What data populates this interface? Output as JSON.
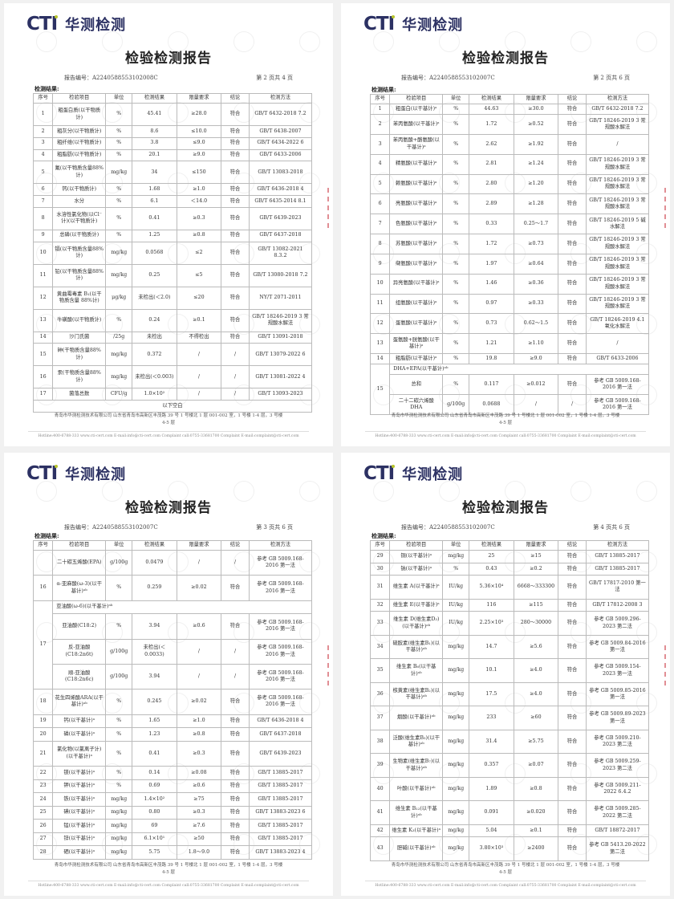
{
  "logo": {
    "brand": "CTI",
    "name_cn": "华测检测",
    "colors": {
      "navy": "#2c3163",
      "accent": "#b6c42a"
    }
  },
  "common": {
    "title": "检验检测报告",
    "results_label": "检测结果:",
    "headers": [
      "序号",
      "检验项目",
      "单位",
      "检测结果",
      "限量要求",
      "结论",
      "检测方法"
    ],
    "footer_company": "青岛市华测检测技术有限公司  山东省青岛市高新区丰茂路 39 号 1 号楼北 1 层 001-002 室，1 号楼 1-4 层，3 号楼 4-5 层",
    "footer_contact": "Hotline:400-6788-333     www.cti-cert.com     E-mail:info@cti-cert.com     Complaint call:0755-33681700     Complaint E-mail:complaint@cti-cert.com"
  },
  "pages": [
    {
      "report_no": "报告编号：A2240588553102008C",
      "page_no": "第 2 页共 4 页",
      "rows": [
        {
          "c": [
            "1",
            "粗蛋白质(以干物质计)",
            "%",
            "45.41",
            "≥28.0",
            "符合",
            "GB/T 6432-2018 7.2"
          ]
        },
        {
          "c": [
            "2",
            "粗灰分(以干物质计)",
            "%",
            "8.6",
            "≤10.0",
            "符合",
            "GB/T 6438-2007"
          ]
        },
        {
          "c": [
            "3",
            "粗纤维(以干物质计)",
            "%",
            "3.8",
            "≤9.0",
            "符合",
            "GB/T 6434-2022 6"
          ]
        },
        {
          "c": [
            "4",
            "粗脂肪(以干物质计)",
            "%",
            "20.1",
            "≥9.0",
            "符合",
            "GB/T 6433-2006"
          ]
        },
        {
          "c": [
            "5",
            "氟(以干物质含量88%计)",
            "mg/kg",
            "34",
            "≤150",
            "符合",
            "GB/T 13083-2018"
          ]
        },
        {
          "c": [
            "6",
            "钙(以干物质计)",
            "%",
            "1.68",
            "≥1.0",
            "符合",
            "GB/T 6436-2018 4"
          ]
        },
        {
          "c": [
            "7",
            "水分",
            "%",
            "6.1",
            "＜14.0",
            "符合",
            "GB/T 6435-2014 8.1"
          ]
        },
        {
          "c": [
            "8",
            "水溶性氯化物(以Cl⁻计)(以干物质计)",
            "%",
            "0.41",
            "≥0.3",
            "符合",
            "GB/T 6439-2023"
          ]
        },
        {
          "c": [
            "9",
            "总磷(以干物质计)",
            "%",
            "1.25",
            "≥0.8",
            "符合",
            "GB/T 6437-2018"
          ]
        },
        {
          "c": [
            "10",
            "镉(以干物质含量88%计)",
            "mg/kg",
            "0.0568",
            "≤2",
            "符合",
            "GB/T 13082-2021 8.3.2"
          ]
        },
        {
          "c": [
            "11",
            "铅(以干物质含量88%计)",
            "mg/kg",
            "0.25",
            "≤5",
            "符合",
            "GB/T 13080-2018 7.2"
          ]
        },
        {
          "c": [
            "12",
            "黄曲霉毒素 B₁(以干物质含量 88%计)",
            "μg/kg",
            "未检出(＜2.0)",
            "≤20",
            "符合",
            "NY/T 2071-2011"
          ]
        },
        {
          "c": [
            "13",
            "牛磺酸(以干物质计)",
            "%",
            "0.24",
            "≥0.1",
            "符合",
            "GB/T 18246-2019 3 常规酸水解法"
          ]
        },
        {
          "c": [
            "14",
            "沙门氏菌",
            "/25g",
            "未检出",
            "不得检出",
            "符合",
            "GB/T 13091-2018"
          ]
        },
        {
          "c": [
            "15",
            "砷(干物质含量88%计)",
            "mg/kg",
            "0.372",
            "/",
            "/",
            "GB/T 13079-2022 6"
          ]
        },
        {
          "c": [
            "16",
            "汞(干物质含量88%计)",
            "mg/kg",
            "未检出(＜0.003)",
            "/",
            "/",
            "GB/T 13081-2022 4"
          ]
        },
        {
          "c": [
            "17",
            "菌落总数",
            "CFU/g",
            "1.0×10²",
            "/",
            "/",
            "GB/T 13093-2023"
          ]
        },
        {
          "note": "以下空白"
        }
      ]
    },
    {
      "report_no": "报告编号：A2240588553102007C",
      "page_no": "第 2 页共 6 页",
      "rows": [
        {
          "c": [
            "1",
            "粗蛋白(以干基计)ᵃ",
            "%",
            "44.63",
            "≥30.0",
            "符合",
            "GB/T 6432-2018 7.2"
          ]
        },
        {
          "c": [
            "2",
            "苯丙氨酸(以干基计)ᵃ",
            "%",
            "1.72",
            "≥0.52",
            "符合",
            "GB/T 18246-2019 3 常规酸水解法"
          ]
        },
        {
          "c": [
            "3",
            "苯丙氨酸+酪氨酸(以干基计)ᵃ",
            "%",
            "2.62",
            "≥1.92",
            "符合",
            "/"
          ]
        },
        {
          "c": [
            "4",
            "精氨酸(以干基计)ᵃ",
            "%",
            "2.81",
            "≥1.24",
            "符合",
            "GB/T 18246-2019 3 常规酸水解法"
          ]
        },
        {
          "c": [
            "5",
            "赖氨酸(以干基计)ᵃ",
            "%",
            "2.80",
            "≥1.20",
            "符合",
            "GB/T 18246-2019 3 常规酸水解法"
          ]
        },
        {
          "c": [
            "6",
            "亮氨酸(以干基计)ᵃ",
            "%",
            "2.89",
            "≥1.28",
            "符合",
            "GB/T 18246-2019 3 常规酸水解法"
          ]
        },
        {
          "c": [
            "7",
            "色氨酸(以干基计)ᵃ",
            "%",
            "0.33",
            "0.25～1.7",
            "符合",
            "GB/T 18246-2019 5 碱水解法"
          ]
        },
        {
          "c": [
            "8",
            "苏氨酸(以干基计)ᵃ",
            "%",
            "1.72",
            "≥0.73",
            "符合",
            "GB/T 18246-2019 3 常规酸水解法"
          ]
        },
        {
          "c": [
            "9",
            "缬氨酸(以干基计)ᵃ",
            "%",
            "1.97",
            "≥0.64",
            "符合",
            "GB/T 18246-2019 3 常规酸水解法"
          ]
        },
        {
          "c": [
            "10",
            "异亮氨酸(以干基计)ᵃ",
            "%",
            "1.46",
            "≥0.36",
            "符合",
            "GB/T 18246-2019 3 常规酸水解法"
          ]
        },
        {
          "c": [
            "11",
            "组氨酸(以干基计)ᵃ",
            "%",
            "0.97",
            "≥0.33",
            "符合",
            "GB/T 18246-2019 3 常规酸水解法"
          ]
        },
        {
          "c": [
            "12",
            "蛋氨酸(以干基计)ᵃ",
            "%",
            "0.73",
            "0.62～1.5",
            "符合",
            "GB/T 18246-2019 4.1 氧化水解法"
          ]
        },
        {
          "c": [
            "13",
            "蛋氨酸+胱氨酸(以干基计)ᵃ",
            "%",
            "1.21",
            "≥1.10",
            "符合",
            "/"
          ]
        },
        {
          "c": [
            "14",
            "粗脂肪(以干基计)ᵃ",
            "%",
            "19.8",
            "≥9.0",
            "符合",
            "GB/T 6433-2006"
          ]
        },
        {
          "seq": "15",
          "group": "DHA+EPA(以干基计)ᵃᵇ",
          "sub": [
            [
              "总和",
              "%",
              "0.117",
              "≥0.012",
              "符合",
              "参考 GB 5009.168-2016 第一法"
            ],
            [
              "二十二碳六烯酸 DHA",
              "g/100g",
              "0.0688",
              "/",
              "/",
              "参考 GB 5009.168-2016 第一法"
            ]
          ]
        }
      ]
    },
    {
      "report_no": "报告编号：A2240588553102007C",
      "page_no": "第 3 页共 6 页",
      "rows": [
        {
          "c": [
            "",
            "二十碳五烯酸(EPA)",
            "g/100g",
            "0.0479",
            "/",
            "/",
            "参考 GB 5009.168-2016 第一法"
          ]
        },
        {
          "c": [
            "16",
            "α-亚麻酸(ω-3)(以干基计)ᵃᵇ",
            "%",
            "0.259",
            "≥0.02",
            "符合",
            "参考 GB 5009.168-2016 第一法"
          ]
        },
        {
          "seq": "17",
          "group": "亚油酸(ω-6)(以干基计)ᵃᵇ",
          "sub": [
            [
              "亚油酸(C18:2)",
              "%",
              "3.94",
              "≥0.6",
              "符合",
              "参考 GB 5009.168-2016 第一法"
            ],
            [
              "反-亚油酸(C18:2n6t)",
              "g/100g",
              "未检出(＜0.0033)",
              "/",
              "/",
              "参考 GB 5009.168-2016 第一法"
            ],
            [
              "顺-亚油酸(C18:2n6c)",
              "g/100g",
              "3.94",
              "/",
              "/",
              "参考 GB 5009.168-2016 第一法"
            ]
          ]
        },
        {
          "c": [
            "18",
            "花生四烯酸ARA(以干基计)ᵃᵇ",
            "%",
            "0.245",
            "≥0.02",
            "符合",
            "参考 GB 5009.168-2016 第一法"
          ]
        },
        {
          "c": [
            "19",
            "钙(以干基计)ᵃ",
            "%",
            "1.65",
            "≥1.0",
            "符合",
            "GB/T 6436-2018 4"
          ]
        },
        {
          "c": [
            "20",
            "磷(以干基计)ᵃ",
            "%",
            "1.23",
            "≥0.8",
            "符合",
            "GB/T 6437-2018"
          ]
        },
        {
          "c": [
            "21",
            "氯化物(以氯离子计)(以干基计)ᵃ",
            "%",
            "0.41",
            "≥0.3",
            "符合",
            "GB/T 6439-2023"
          ]
        },
        {
          "c": [
            "22",
            "镁(以干基计)ᵃ",
            "%",
            "0.14",
            "≥0.08",
            "符合",
            "GB/T 13885-2017"
          ]
        },
        {
          "c": [
            "23",
            "钾(以干基计)ᵃ",
            "%",
            "0.69",
            "≥0.6",
            "符合",
            "GB/T 13885-2017"
          ]
        },
        {
          "c": [
            "24",
            "铁(以干基计)ᵃ",
            "mg/kg",
            "1.4×10²",
            "≥75",
            "符合",
            "GB/T 13885-2017"
          ]
        },
        {
          "c": [
            "25",
            "碘(以干基计)ᵃ",
            "mg/kg",
            "0.80",
            "≥0.3",
            "符合",
            "GB/T 13883-2023 6"
          ]
        },
        {
          "c": [
            "26",
            "锰(以干基计)ᵃ",
            "mg/kg",
            "69",
            "≥7.6",
            "符合",
            "GB/T 13885-2017"
          ]
        },
        {
          "c": [
            "27",
            "锌(以干基计)ᵃ",
            "mg/kg",
            "6.1×10¹",
            "≥50",
            "符合",
            "GB/T 13885-2017"
          ]
        },
        {
          "c": [
            "28",
            "硒(以干基计)ᵃ",
            "mg/kg",
            "5.75",
            "1.8～9.0",
            "符合",
            "GB/T 13883-2023 4"
          ]
        }
      ]
    },
    {
      "report_no": "报告编号：A2240588553102007C",
      "page_no": "第 4 页共 6 页",
      "rows": [
        {
          "c": [
            "29",
            "铜(以干基计)ᵃ",
            "mg/kg",
            "25",
            "≥15",
            "符合",
            "GB/T 13885-2017"
          ]
        },
        {
          "c": [
            "30",
            "钠(以干基计)ᵃ",
            "%",
            "0.43",
            "≥0.2",
            "符合",
            "GB/T 13885-2017"
          ]
        },
        {
          "c": [
            "31",
            "维生素 A(以干基计)ᵃ",
            "IU/kg",
            "5.36×10⁴",
            "6668～333300",
            "符合",
            "GB/T 17817-2010 第一法"
          ]
        },
        {
          "c": [
            "32",
            "维生素 E(以干基计)ᵃ",
            "IU/kg",
            "116",
            "≥115",
            "符合",
            "GB/T 17812-2008 3"
          ]
        },
        {
          "c": [
            "33",
            "维生素 D(维生素D₃)(以干基计)ᵃᵇ",
            "IU/kg",
            "2.25×10³",
            "280～30000",
            "符合",
            "参考 GB 5009.296-2023 第二法"
          ]
        },
        {
          "c": [
            "34",
            "硫胺素(维生素B₁)(以干基计)ᵃᵇ",
            "mg/kg",
            "14.7",
            "≥5.6",
            "符合",
            "参考 GB 5009.84-2016 第一法"
          ]
        },
        {
          "c": [
            "35",
            "维生素 B₆(以干基计)ᵃᵇ",
            "mg/kg",
            "10.1",
            "≥4.0",
            "符合",
            "参考 GB 5009.154-2023 第一法"
          ]
        },
        {
          "c": [
            "36",
            "核黄素(维生素B₂)(以干基计)ᵃᵇ",
            "mg/kg",
            "17.5",
            "≥4.0",
            "符合",
            "参考 GB 5009.85-2016 第一法"
          ]
        },
        {
          "c": [
            "37",
            "烟酸(以干基计)ᵃᵇ",
            "mg/kg",
            "233",
            "≥60",
            "符合",
            "参考 GB 5009.89-2023 第一法"
          ]
        },
        {
          "c": [
            "38",
            "泛酸(维生素B₅)(以干基计)ᵃᵇ",
            "mg/kg",
            "31.4",
            "≥5.75",
            "符合",
            "参考 GB 5009.210-2023 第二法"
          ]
        },
        {
          "c": [
            "39",
            "生物素(维生素B₇)(以干基计)ᵃᵇ",
            "mg/kg",
            "0.357",
            "≥0.07",
            "符合",
            "参考 GB 5009.259-2023 第二法"
          ]
        },
        {
          "c": [
            "40",
            "叶酸(以干基计)ᵃᵇ",
            "mg/kg",
            "1.89",
            "≥0.8",
            "符合",
            "参考 GB 5009.211-2022 6.4.2"
          ]
        },
        {
          "c": [
            "41",
            "维生素 B₁₂(以干基计)ᵃᵇ",
            "mg/kg",
            "0.091",
            "≥0.020",
            "符合",
            "参考 GB 5009.285-2022 第二法"
          ]
        },
        {
          "c": [
            "42",
            "维生素 K₃(以干基计)ᵃ",
            "mg/kg",
            "5.04",
            "≥0.1",
            "符合",
            "GB/T 18872-2017"
          ]
        },
        {
          "c": [
            "43",
            "胆碱(以干基计)ᵃᵇ",
            "mg/kg",
            "3.80×10³",
            "≥2400",
            "符合",
            "参考 GB 5413.20-2022 第二法"
          ]
        }
      ]
    }
  ]
}
